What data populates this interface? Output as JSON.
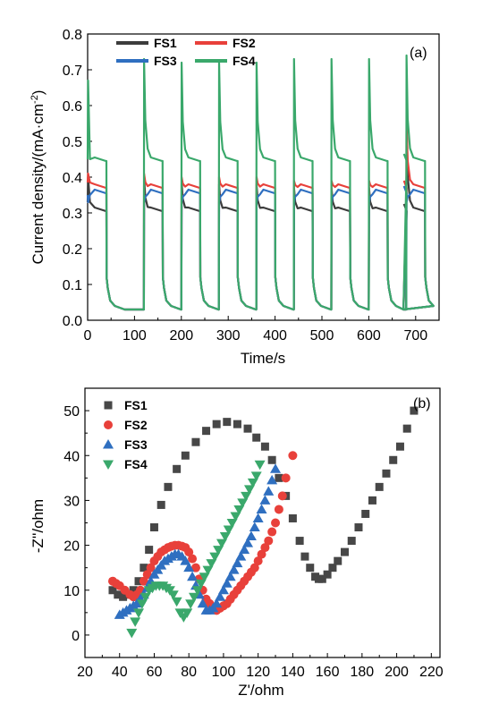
{
  "chart_data": [
    {
      "panel": "(a)",
      "type": "line",
      "xlabel": "Time/s",
      "ylabel_parts": [
        "Current density/(mA",
        "·",
        "cm",
        "-2",
        ")"
      ],
      "xlim": [
        0,
        750
      ],
      "ylim": [
        0.0,
        0.8
      ],
      "xticks": [
        0,
        100,
        200,
        300,
        400,
        500,
        600,
        700
      ],
      "yticks": [
        0.0,
        0.1,
        0.2,
        0.3,
        0.4,
        0.5,
        0.6,
        0.7,
        0.8
      ],
      "ytick_labels": [
        "0.0",
        "0.1",
        "0.2",
        "0.3",
        "0.4",
        "0.5",
        "0.6",
        "0.7",
        "0.8"
      ],
      "grid": false,
      "legend_position": "top-left",
      "chopping": {
        "on_start": 0,
        "period": 80,
        "on_duration": 40,
        "cycles": 9,
        "end": 675,
        "dark_base": 0.03,
        "dark_initial": 0.12
      },
      "series": [
        {
          "name": "FS1",
          "color": "#3c3c3c",
          "steady": 0.305,
          "initial": 0.33,
          "peaks": [
            0.4,
            0.4,
            0.39,
            0.38,
            0.38,
            0.37,
            0.37,
            0.37,
            0.55
          ]
        },
        {
          "name": "FS2",
          "color": "#e8403a",
          "steady": 0.37,
          "initial": 0.385,
          "peaks": [
            0.41,
            0.41,
            0.4,
            0.4,
            0.4,
            0.39,
            0.39,
            0.39,
            0.56
          ]
        },
        {
          "name": "FS3",
          "color": "#2f6fc0",
          "steady": 0.355,
          "initial": 0.35,
          "peaks": [
            0.33,
            0.33,
            0.33,
            0.33,
            0.33,
            0.33,
            0.33,
            0.33,
            0.33
          ]
        },
        {
          "name": "FS4",
          "color": "#3aa86b",
          "steady": 0.445,
          "initial": 0.45,
          "peaks": [
            0.67,
            0.73,
            0.72,
            0.72,
            0.72,
            0.73,
            0.73,
            0.73,
            0.74
          ]
        }
      ]
    },
    {
      "panel": "(b)",
      "type": "scatter",
      "xlabel": "Z'/ohm",
      "ylabel": "-Z''/ohm",
      "xlim": [
        20,
        225
      ],
      "ylim": [
        -5,
        55
      ],
      "xticks": [
        20,
        40,
        60,
        80,
        100,
        120,
        140,
        160,
        180,
        200,
        220
      ],
      "yticks": [
        0,
        10,
        20,
        30,
        40,
        50
      ],
      "grid": false,
      "legend_position": "top-left",
      "series": [
        {
          "name": "FS1",
          "marker": "square",
          "color": "#474747",
          "x": [
            36,
            39,
            42,
            45,
            48,
            51,
            54,
            57,
            60,
            64,
            68,
            73,
            78,
            84,
            90,
            96,
            102,
            108,
            114,
            119,
            124,
            128,
            132,
            136,
            140,
            144,
            147,
            150,
            153,
            155,
            157,
            160,
            163,
            166,
            170,
            174,
            178,
            182,
            186,
            190,
            194,
            198,
            202,
            206,
            210
          ],
          "y": [
            10,
            9,
            8.5,
            9,
            10,
            12,
            15,
            19,
            24,
            29,
            33,
            37,
            40,
            43,
            45.5,
            47,
            47.5,
            47,
            46,
            44,
            42,
            39,
            35,
            31,
            26,
            21,
            17.5,
            15,
            13,
            12.5,
            12.5,
            13.5,
            15,
            16.5,
            18.5,
            21,
            24,
            27,
            30,
            33,
            36,
            39,
            42,
            46,
            50
          ]
        },
        {
          "name": "FS2",
          "marker": "circle",
          "color": "#e8403a",
          "x": [
            36,
            38,
            40,
            43,
            46,
            48,
            50,
            52,
            54,
            56,
            58,
            60,
            62,
            64,
            66,
            68,
            70,
            72,
            74,
            76,
            78,
            80,
            82,
            84,
            86,
            88,
            90,
            92,
            94,
            96,
            98,
            100,
            102,
            104,
            106,
            108,
            110,
            112,
            114,
            116,
            118,
            120,
            122,
            124,
            126,
            128,
            130,
            132,
            134,
            136,
            140
          ],
          "y": [
            12,
            11.5,
            11,
            10,
            9,
            8.5,
            9,
            10,
            12,
            13.5,
            15,
            16.5,
            17.5,
            18.5,
            19,
            19.5,
            19.8,
            20,
            20,
            19.8,
            19.5,
            18.5,
            17,
            15,
            12.5,
            10,
            8,
            7,
            6,
            5.5,
            6,
            6.5,
            7,
            8,
            9,
            10,
            11,
            12,
            13,
            14,
            15,
            16.5,
            18,
            19.5,
            21,
            23,
            25,
            28,
            31,
            35,
            40
          ]
        },
        {
          "name": "FS3",
          "marker": "triangle-up",
          "color": "#2f6fc0",
          "x": [
            40,
            42,
            44,
            46,
            48,
            50,
            52,
            54,
            56,
            58,
            60,
            62,
            64,
            66,
            68,
            70,
            72,
            74,
            76,
            78,
            80,
            82,
            84,
            86,
            88,
            90,
            92,
            94,
            96,
            98,
            100,
            102,
            104,
            106,
            108,
            110,
            112,
            114,
            116,
            118,
            120,
            122,
            124,
            126,
            128,
            130
          ],
          "y": [
            4.5,
            5,
            5.5,
            6,
            6.5,
            7,
            8,
            9,
            10.5,
            12,
            13.5,
            14.5,
            15.5,
            16.5,
            17,
            17.5,
            18,
            18,
            17.5,
            16.5,
            15,
            13,
            11,
            9,
            7,
            5.5,
            5.5,
            6,
            7,
            8.5,
            10,
            11.5,
            13,
            14.5,
            16,
            17.5,
            19,
            20.5,
            22,
            24,
            26,
            28,
            30,
            32,
            34.5,
            37
          ]
        },
        {
          "name": "FS4",
          "marker": "triangle-down",
          "color": "#3aa86b",
          "x": [
            47,
            49,
            51,
            53,
            55,
            57,
            59,
            61,
            63,
            65,
            67,
            69,
            71,
            73,
            75,
            77,
            79,
            81,
            83,
            85,
            87,
            89,
            91,
            93,
            95,
            97,
            99,
            101,
            103,
            105,
            107,
            109,
            111,
            113,
            115,
            117,
            119,
            121
          ],
          "y": [
            0.5,
            3,
            5,
            7,
            8.5,
            10,
            10.5,
            11,
            11,
            11,
            10.5,
            10,
            9,
            7.5,
            5,
            4,
            5,
            7,
            8.5,
            10,
            11.5,
            13,
            14.5,
            16,
            17.5,
            19,
            20.5,
            22,
            23.5,
            25,
            26.5,
            28,
            29.5,
            31,
            32.5,
            34,
            35.5,
            38
          ]
        }
      ]
    }
  ]
}
